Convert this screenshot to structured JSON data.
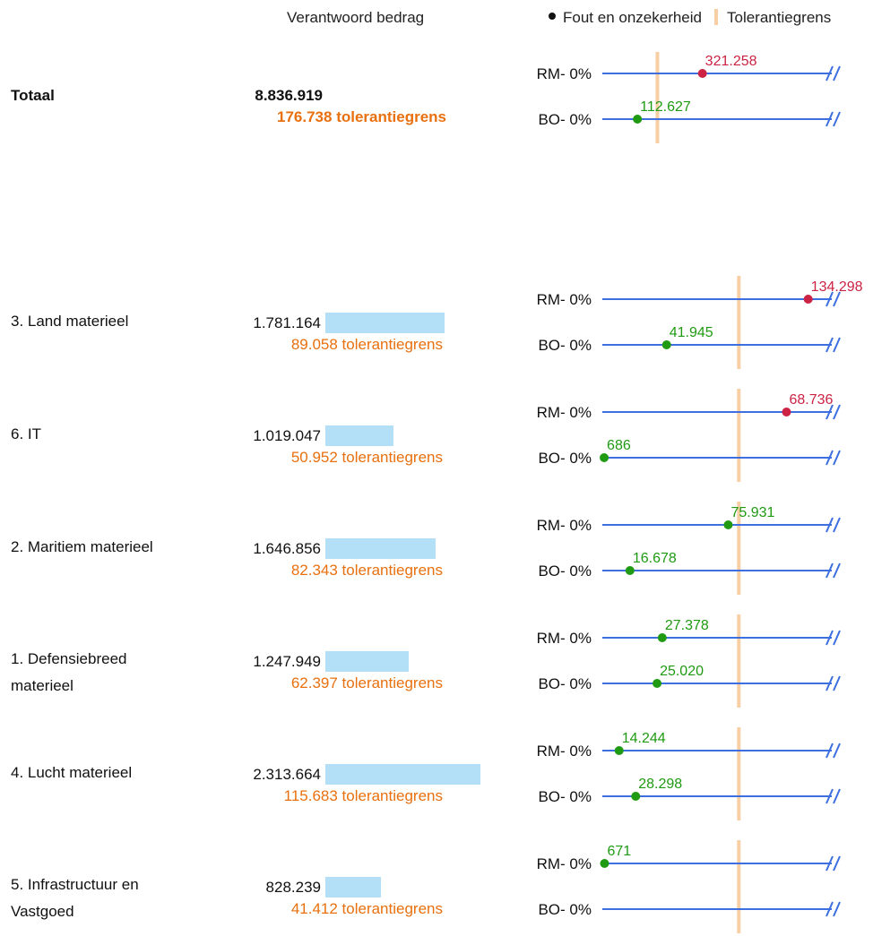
{
  "header": {
    "amount_title": "Verantwoord bedrag"
  },
  "legend": {
    "error_label": "Fout en onzekerheid",
    "tolerance_label": "Tolerantiegrens"
  },
  "colors": {
    "line": "#3d6fe0",
    "tolerance": "#f8cfa4",
    "above": "#cc2244",
    "below": "#1f9a12",
    "tol_text": "#e8700f",
    "bar": "#b3e0f7"
  },
  "chart_data": {
    "type": "dot",
    "axis_break": true,
    "row_label_suffix": "- 0%",
    "groups": [
      {
        "name": "Totaal",
        "total": true,
        "amount": "8.836.919",
        "amount_value": 8836919,
        "tolerance": "176.738 tolerantiegrens",
        "tolerance_value": 176738,
        "points": [
          {
            "series": "RM",
            "label": "321.258",
            "value": 321258
          },
          {
            "series": "BO",
            "label": "112.627",
            "value": 112627
          }
        ]
      },
      {
        "name": "3. Land materieel",
        "amount": "1.781.164",
        "amount_value": 1781164,
        "tolerance": "89.058 tolerantiegrens",
        "tolerance_value": 89058,
        "points": [
          {
            "series": "RM",
            "label": "134.298",
            "value": 134298
          },
          {
            "series": "BO",
            "label": "41.945",
            "value": 41945
          }
        ]
      },
      {
        "name": "6. IT",
        "amount": "1.019.047",
        "amount_value": 1019047,
        "tolerance": "50.952 tolerantiegrens",
        "tolerance_value": 50952,
        "points": [
          {
            "series": "RM",
            "label": "68.736",
            "value": 68736
          },
          {
            "series": "BO",
            "label": "686",
            "value": 686
          }
        ]
      },
      {
        "name": "2. Maritiem materieel",
        "amount": "1.646.856",
        "amount_value": 1646856,
        "tolerance": "82.343 tolerantiegrens",
        "tolerance_value": 82343,
        "points": [
          {
            "series": "RM",
            "label": "75.931",
            "value": 75931
          },
          {
            "series": "BO",
            "label": "16.678",
            "value": 16678
          }
        ]
      },
      {
        "name": "1. Defensiebreed materieel",
        "name_lines": [
          "1. Defensiebreed",
          "materieel"
        ],
        "amount": "1.247.949",
        "amount_value": 1247949,
        "tolerance": "62.397 tolerantiegrens",
        "tolerance_value": 62397,
        "points": [
          {
            "series": "RM",
            "label": "27.378",
            "value": 27378
          },
          {
            "series": "BO",
            "label": "25.020",
            "value": 25020
          }
        ]
      },
      {
        "name": "4. Lucht materieel",
        "amount": "2.313.664",
        "amount_value": 2313664,
        "tolerance": "115.683 tolerantiegrens",
        "tolerance_value": 115683,
        "points": [
          {
            "series": "RM",
            "label": "14.244",
            "value": 14244
          },
          {
            "series": "BO",
            "label": "28.298",
            "value": 28298
          }
        ]
      },
      {
        "name": "5. Infrastructuur en Vastgoed",
        "name_lines": [
          "5. Infrastructuur en",
          "Vastgoed"
        ],
        "amount": "828.239",
        "amount_value": 828239,
        "tolerance": "41.412 tolerantiegrens",
        "tolerance_value": 41412,
        "points": [
          {
            "series": "RM",
            "label": "671",
            "value": 671
          },
          {
            "series": "BO",
            "label": "",
            "value": null
          }
        ]
      }
    ]
  }
}
